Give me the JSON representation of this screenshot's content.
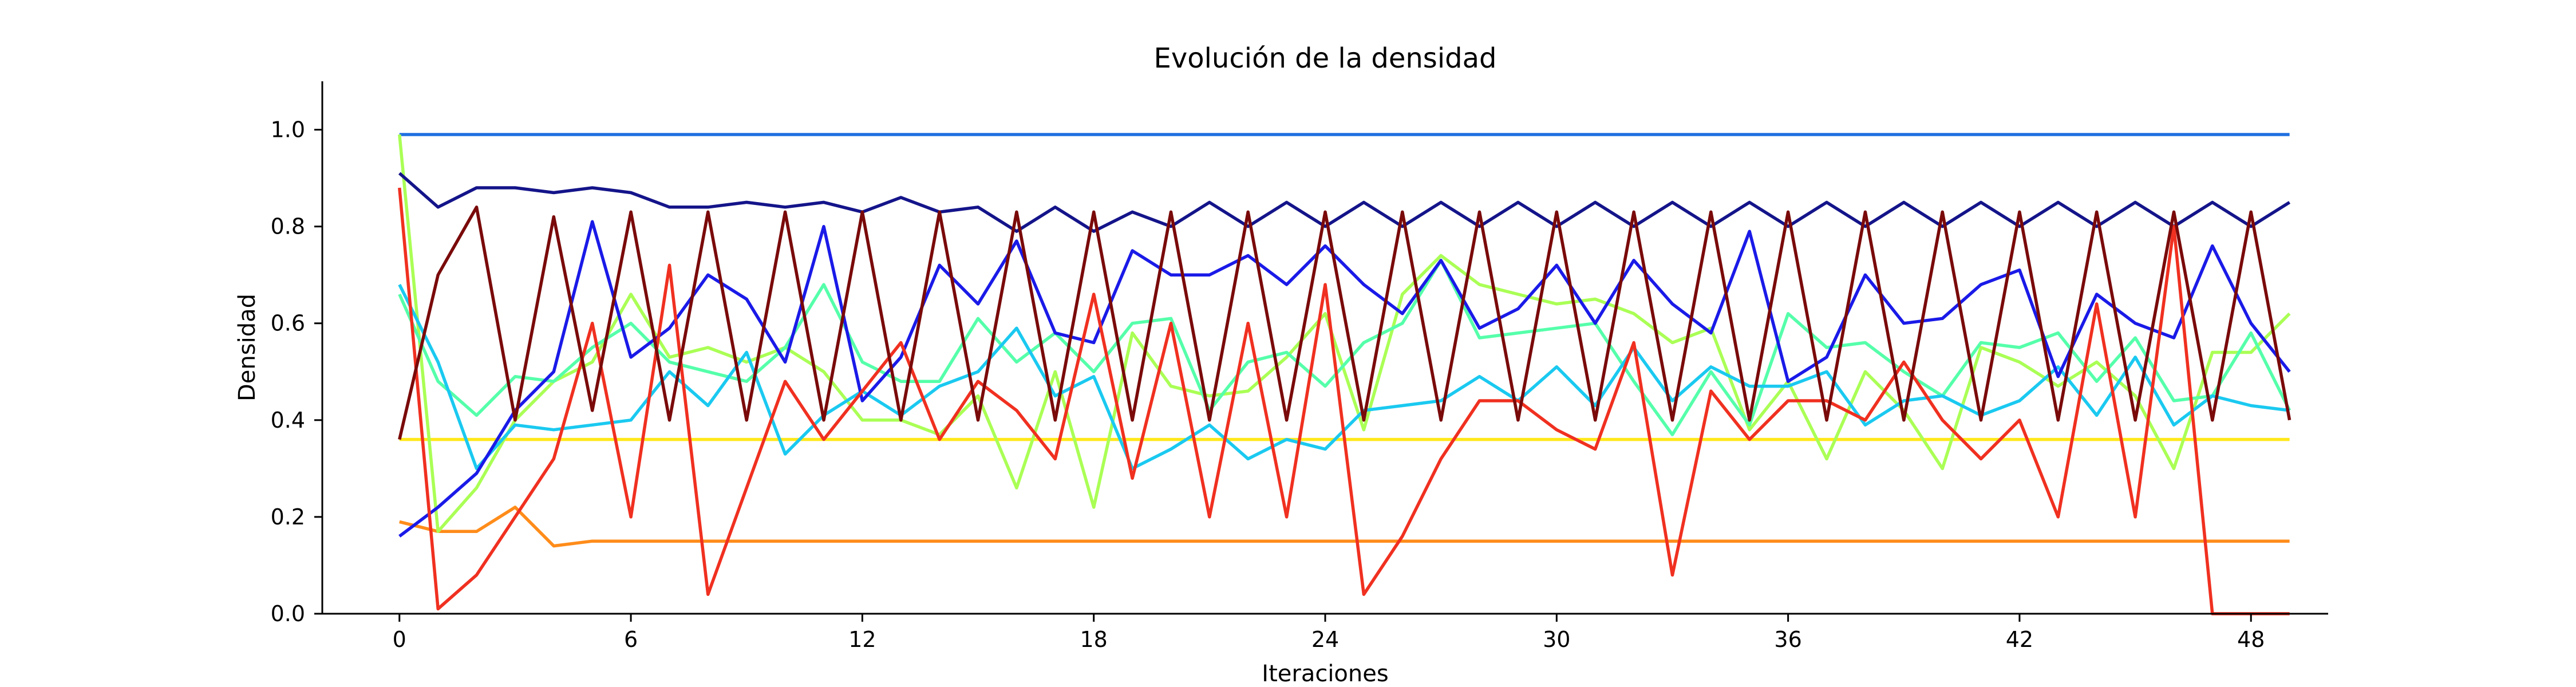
{
  "chart_data": {
    "type": "line",
    "title": "Evolución de la densidad",
    "xlabel": "Iteraciones",
    "ylabel": "Densidad",
    "xlim": [
      -2,
      50
    ],
    "ylim": [
      0,
      1.1
    ],
    "xticks": [
      0,
      6,
      12,
      18,
      24,
      30,
      36,
      42,
      48
    ],
    "yticks": [
      0.0,
      0.2,
      0.4,
      0.6,
      0.8,
      1.0
    ],
    "ytick_labels": [
      "0.0",
      "0.2",
      "0.4",
      "0.6",
      "0.8",
      "1.0"
    ],
    "grid": false,
    "legend": false,
    "series": [
      {
        "color": "#ff8c1a",
        "values": [
          0.19,
          0.17,
          0.17,
          0.22,
          0.14,
          0.15,
          0.15,
          0.15,
          0.15,
          0.15,
          0.15,
          0.15,
          0.15,
          0.15,
          0.15,
          0.15,
          0.15,
          0.15,
          0.15,
          0.15,
          0.15,
          0.15,
          0.15,
          0.15,
          0.15,
          0.15,
          0.15,
          0.15,
          0.15,
          0.15,
          0.15,
          0.15,
          0.15,
          0.15,
          0.15,
          0.15,
          0.15,
          0.15,
          0.15,
          0.15,
          0.15,
          0.15,
          0.15,
          0.15,
          0.15,
          0.15,
          0.15,
          0.15,
          0.15,
          0.15
        ]
      },
      {
        "color": "#ffe81a",
        "values": [
          0.36,
          0.36,
          0.36,
          0.36,
          0.36,
          0.36,
          0.36,
          0.36,
          0.36,
          0.36,
          0.36,
          0.36,
          0.36,
          0.36,
          0.36,
          0.36,
          0.36,
          0.36,
          0.36,
          0.36,
          0.36,
          0.36,
          0.36,
          0.36,
          0.36,
          0.36,
          0.36,
          0.36,
          0.36,
          0.36,
          0.36,
          0.36,
          0.36,
          0.36,
          0.36,
          0.36,
          0.36,
          0.36,
          0.36,
          0.36,
          0.36,
          0.36,
          0.36,
          0.36,
          0.36,
          0.36,
          0.36,
          0.36,
          0.36,
          0.36
        ]
      },
      {
        "color": "#1f6fe0",
        "values": [
          0.99,
          0.99,
          0.99,
          0.99,
          0.99,
          0.99,
          0.99,
          0.99,
          0.99,
          0.99,
          0.99,
          0.99,
          0.99,
          0.99,
          0.99,
          0.99,
          0.99,
          0.99,
          0.99,
          0.99,
          0.99,
          0.99,
          0.99,
          0.99,
          0.99,
          0.99,
          0.99,
          0.99,
          0.99,
          0.99,
          0.99,
          0.99,
          0.99,
          0.99,
          0.99,
          0.99,
          0.99,
          0.99,
          0.99,
          0.99,
          0.99,
          0.99,
          0.99,
          0.99,
          0.99,
          0.99,
          0.99,
          0.99,
          0.99,
          0.99
        ]
      },
      {
        "color": "#aaff55",
        "values": [
          0.99,
          0.17,
          0.26,
          0.4,
          0.48,
          0.52,
          0.66,
          0.53,
          0.55,
          0.52,
          0.55,
          0.5,
          0.4,
          0.4,
          0.37,
          0.45,
          0.26,
          0.5,
          0.22,
          0.58,
          0.47,
          0.45,
          0.46,
          0.53,
          0.62,
          0.38,
          0.66,
          0.74,
          0.68,
          0.66,
          0.64,
          0.65,
          0.62,
          0.56,
          0.59,
          0.38,
          0.48,
          0.32,
          0.5,
          0.42,
          0.3,
          0.55,
          0.52,
          0.47,
          0.52,
          0.45,
          0.3,
          0.54,
          0.54,
          0.62
        ]
      },
      {
        "color": "#55ffaa",
        "values": [
          0.66,
          0.48,
          0.41,
          0.49,
          0.48,
          0.55,
          0.6,
          0.52,
          0.5,
          0.48,
          0.55,
          0.68,
          0.52,
          0.48,
          0.48,
          0.61,
          0.52,
          0.58,
          0.5,
          0.6,
          0.61,
          0.42,
          0.52,
          0.54,
          0.47,
          0.56,
          0.6,
          0.73,
          0.57,
          0.58,
          0.59,
          0.6,
          0.48,
          0.37,
          0.5,
          0.39,
          0.62,
          0.55,
          0.56,
          0.5,
          0.45,
          0.56,
          0.55,
          0.58,
          0.48,
          0.57,
          0.44,
          0.45,
          0.58,
          0.42
        ]
      },
      {
        "color": "#1ac9f0",
        "values": [
          0.68,
          0.52,
          0.3,
          0.39,
          0.38,
          0.39,
          0.4,
          0.5,
          0.43,
          0.54,
          0.33,
          0.41,
          0.46,
          0.41,
          0.47,
          0.5,
          0.59,
          0.45,
          0.49,
          0.3,
          0.34,
          0.39,
          0.32,
          0.36,
          0.34,
          0.42,
          0.43,
          0.44,
          0.49,
          0.44,
          0.51,
          0.43,
          0.55,
          0.44,
          0.51,
          0.47,
          0.47,
          0.5,
          0.39,
          0.44,
          0.45,
          0.41,
          0.44,
          0.51,
          0.41,
          0.53,
          0.39,
          0.45,
          0.43,
          0.42
        ]
      },
      {
        "color": "#1a1ae8",
        "values": [
          0.16,
          0.22,
          0.29,
          0.42,
          0.5,
          0.81,
          0.53,
          0.59,
          0.7,
          0.65,
          0.52,
          0.8,
          0.44,
          0.53,
          0.72,
          0.64,
          0.77,
          0.58,
          0.56,
          0.75,
          0.7,
          0.7,
          0.74,
          0.68,
          0.76,
          0.68,
          0.62,
          0.73,
          0.59,
          0.63,
          0.72,
          0.6,
          0.73,
          0.64,
          0.58,
          0.79,
          0.48,
          0.53,
          0.7,
          0.6,
          0.61,
          0.68,
          0.71,
          0.49,
          0.66,
          0.6,
          0.57,
          0.76,
          0.6,
          0.5
        ]
      },
      {
        "color": "#14148a",
        "values": [
          0.91,
          0.84,
          0.88,
          0.88,
          0.87,
          0.88,
          0.87,
          0.84,
          0.84,
          0.85,
          0.84,
          0.85,
          0.83,
          0.86,
          0.83,
          0.84,
          0.79,
          0.84,
          0.79,
          0.83,
          0.8,
          0.85,
          0.8,
          0.85,
          0.8,
          0.85,
          0.8,
          0.85,
          0.8,
          0.85,
          0.8,
          0.85,
          0.8,
          0.85,
          0.8,
          0.85,
          0.8,
          0.85,
          0.8,
          0.85,
          0.8,
          0.85,
          0.8,
          0.85,
          0.8,
          0.85,
          0.8,
          0.85,
          0.8,
          0.85
        ]
      },
      {
        "color": "#f03020",
        "values": [
          0.88,
          0.01,
          0.08,
          0.2,
          0.32,
          0.6,
          0.2,
          0.72,
          0.04,
          0.26,
          0.48,
          0.36,
          0.46,
          0.56,
          0.36,
          0.48,
          0.42,
          0.32,
          0.66,
          0.28,
          0.6,
          0.2,
          0.6,
          0.2,
          0.68,
          0.04,
          0.16,
          0.32,
          0.44,
          0.44,
          0.38,
          0.34,
          0.56,
          0.08,
          0.46,
          0.36,
          0.44,
          0.44,
          0.4,
          0.52,
          0.4,
          0.32,
          0.4,
          0.2,
          0.64,
          0.2,
          0.8,
          0.0,
          0.0,
          0.0
        ]
      },
      {
        "color": "#7a0a0a",
        "values": [
          0.36,
          0.7,
          0.84,
          0.4,
          0.82,
          0.42,
          0.83,
          0.4,
          0.83,
          0.4,
          0.83,
          0.4,
          0.83,
          0.4,
          0.83,
          0.4,
          0.83,
          0.4,
          0.83,
          0.4,
          0.83,
          0.4,
          0.83,
          0.4,
          0.83,
          0.4,
          0.83,
          0.4,
          0.83,
          0.4,
          0.83,
          0.4,
          0.83,
          0.4,
          0.83,
          0.4,
          0.83,
          0.4,
          0.83,
          0.4,
          0.83,
          0.4,
          0.83,
          0.4,
          0.83,
          0.4,
          0.83,
          0.4,
          0.83,
          0.4
        ]
      }
    ]
  }
}
